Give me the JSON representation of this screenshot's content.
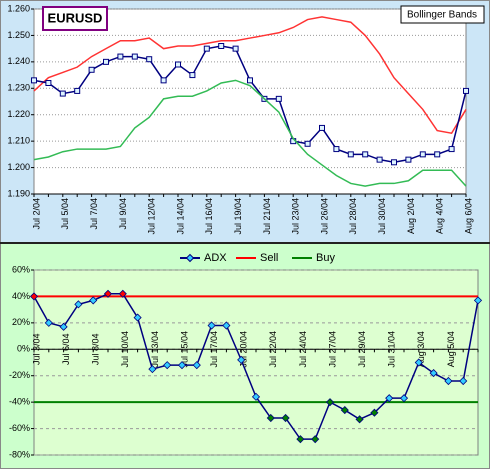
{
  "chart_data": [
    {
      "type": "line",
      "title": "EURUSD",
      "annotation": "Bollinger Bands",
      "categories": [
        "Jul 2/04",
        null,
        "Jul 5/04",
        null,
        "Jul 7/04",
        null,
        "Jul 9/04",
        null,
        "Jul 12/04",
        null,
        "Jul 14/04",
        null,
        "Jul 16/04",
        null,
        "Jul 19/04",
        null,
        "Jul 21/04",
        null,
        "Jul 23/04",
        null,
        "Jul 26/04",
        null,
        "Jul 28/04",
        null,
        "Jul 30/04",
        null,
        "Aug 2/04",
        null,
        "Aug 4/04",
        null,
        "Aug 6/04"
      ],
      "series": [
        {
          "color": "#ff3333",
          "values": [
            1.229,
            1.234,
            1.236,
            1.238,
            1.242,
            1.245,
            1.248,
            1.248,
            1.249,
            1.245,
            1.246,
            1.246,
            1.247,
            1.248,
            1.248,
            1.249,
            1.25,
            1.251,
            1.253,
            1.256,
            1.257,
            1.256,
            1.255,
            1.25,
            1.243,
            1.234,
            1.228,
            1.222,
            1.214,
            1.213,
            1.222
          ]
        },
        {
          "color": "#000080",
          "marker_color": "#ddf4ff",
          "values": [
            1.233,
            1.232,
            1.228,
            1.229,
            1.237,
            1.24,
            1.242,
            1.242,
            1.241,
            1.233,
            1.239,
            1.235,
            1.245,
            1.246,
            1.245,
            1.233,
            1.226,
            1.226,
            1.21,
            1.209,
            1.215,
            1.207,
            1.205,
            1.205,
            1.203,
            1.202,
            1.203,
            1.205,
            1.205,
            1.207,
            1.229
          ]
        },
        {
          "color": "#33bb55",
          "values": [
            1.203,
            1.204,
            1.206,
            1.207,
            1.207,
            1.207,
            1.208,
            1.215,
            1.219,
            1.226,
            1.227,
            1.227,
            1.229,
            1.232,
            1.233,
            1.231,
            1.226,
            1.221,
            1.211,
            1.205,
            1.201,
            1.197,
            1.194,
            1.193,
            1.194,
            1.194,
            1.195,
            1.199,
            1.199,
            1.199,
            1.193
          ]
        }
      ],
      "ylim": [
        1.19,
        1.26
      ],
      "yticks": [
        {
          "value": 1.19,
          "label": "1.190"
        },
        {
          "value": 1.2,
          "label": "1.200"
        },
        {
          "value": 1.21,
          "label": "1.210"
        },
        {
          "value": 1.22,
          "label": "1.220"
        },
        {
          "value": 1.23,
          "label": "1.230"
        },
        {
          "value": 1.24,
          "label": "1.240"
        },
        {
          "value": 1.25,
          "label": "1.250"
        },
        {
          "value": 1.26,
          "label": "1.260"
        }
      ],
      "grid": true
    },
    {
      "type": "line",
      "categories": [
        "Jul 3/04",
        null,
        "Jul 6/04",
        null,
        "Jul 8/04",
        null,
        "Jul 10/04",
        null,
        "Jul 13/04",
        null,
        "Jul 15/04",
        null,
        "Jul 17/04",
        null,
        "Jul 20/04",
        null,
        "Jul 22/04",
        null,
        "Jul 24/04",
        null,
        "Jul 27/04",
        null,
        "Jul 29/04",
        null,
        "Jul 31/04",
        null,
        "Aug 3/04",
        null,
        "Aug 5/04",
        null,
        null
      ],
      "series": [
        {
          "name": "ADX",
          "color": "#000080",
          "marker_color": "#33ccff",
          "values": [
            40,
            20,
            17,
            34,
            37,
            42,
            42,
            24,
            -15,
            -12,
            -12,
            -12,
            18,
            18,
            -8,
            -36,
            -52,
            -52,
            -68,
            -68,
            -40,
            -46,
            -53,
            -48,
            -37,
            -37,
            -10,
            -18,
            -24,
            -24,
            37
          ]
        }
      ],
      "hlines": [
        {
          "name": "Sell",
          "color": "#ff0000",
          "value": 40
        },
        {
          "name": "Buy",
          "color": "#008000",
          "value": -40
        }
      ],
      "ylim": [
        -80,
        60
      ],
      "yticks": [
        {
          "value": -80,
          "label": "-80%"
        },
        {
          "value": -60,
          "label": "-60%"
        },
        {
          "value": -40,
          "label": "-40%"
        },
        {
          "value": -20,
          "label": "-20%"
        },
        {
          "value": 0,
          "label": "0%"
        },
        {
          "value": 20,
          "label": "20%"
        },
        {
          "value": 40,
          "label": "40%"
        },
        {
          "value": 60,
          "label": "60%"
        }
      ],
      "grid": true,
      "legend": "top"
    }
  ]
}
